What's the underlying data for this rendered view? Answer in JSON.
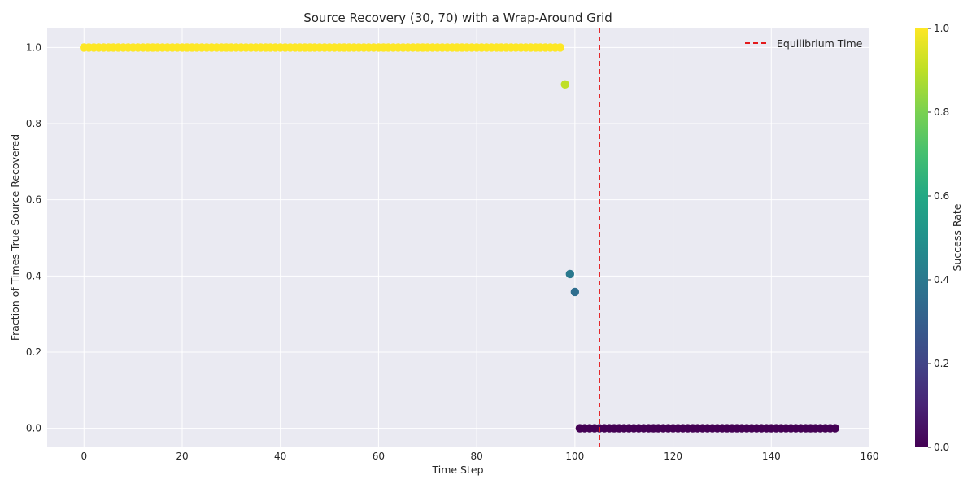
{
  "chart_data": {
    "type": "scatter",
    "title": "Source Recovery (30, 70) with a Wrap-Around Grid",
    "xlabel": "Time Step",
    "ylabel": "Fraction of Times True Source Recovered",
    "xlim": [
      -7.5,
      160
    ],
    "ylim": [
      -0.05,
      1.05
    ],
    "x_ticks": [
      0,
      20,
      40,
      60,
      80,
      100,
      120,
      140,
      160
    ],
    "y_ticks": [
      0.0,
      0.2,
      0.4,
      0.6,
      0.8,
      1.0
    ],
    "grid": true,
    "colormap": "viridis",
    "colorbar": {
      "label": "Success Rate",
      "range": [
        0.0,
        1.0
      ],
      "ticks": [
        0.0,
        0.2,
        0.4,
        0.6,
        0.8,
        1.0
      ]
    },
    "series": [
      {
        "points": [
          {
            "x": 0,
            "y": 1.0
          },
          {
            "x": 1,
            "y": 1.0
          },
          {
            "x": 2,
            "y": 1.0
          },
          {
            "x": 3,
            "y": 1.0
          },
          {
            "x": 4,
            "y": 1.0
          },
          {
            "x": 5,
            "y": 1.0
          },
          {
            "x": 6,
            "y": 1.0
          },
          {
            "x": 7,
            "y": 1.0
          },
          {
            "x": 8,
            "y": 1.0
          },
          {
            "x": 9,
            "y": 1.0
          },
          {
            "x": 10,
            "y": 1.0
          },
          {
            "x": 11,
            "y": 1.0
          },
          {
            "x": 12,
            "y": 1.0
          },
          {
            "x": 13,
            "y": 1.0
          },
          {
            "x": 14,
            "y": 1.0
          },
          {
            "x": 15,
            "y": 1.0
          },
          {
            "x": 16,
            "y": 1.0
          },
          {
            "x": 17,
            "y": 1.0
          },
          {
            "x": 18,
            "y": 1.0
          },
          {
            "x": 19,
            "y": 1.0
          },
          {
            "x": 20,
            "y": 1.0
          },
          {
            "x": 21,
            "y": 1.0
          },
          {
            "x": 22,
            "y": 1.0
          },
          {
            "x": 23,
            "y": 1.0
          },
          {
            "x": 24,
            "y": 1.0
          },
          {
            "x": 25,
            "y": 1.0
          },
          {
            "x": 26,
            "y": 1.0
          },
          {
            "x": 27,
            "y": 1.0
          },
          {
            "x": 28,
            "y": 1.0
          },
          {
            "x": 29,
            "y": 1.0
          },
          {
            "x": 30,
            "y": 1.0
          },
          {
            "x": 31,
            "y": 1.0
          },
          {
            "x": 32,
            "y": 1.0
          },
          {
            "x": 33,
            "y": 1.0
          },
          {
            "x": 34,
            "y": 1.0
          },
          {
            "x": 35,
            "y": 1.0
          },
          {
            "x": 36,
            "y": 1.0
          },
          {
            "x": 37,
            "y": 1.0
          },
          {
            "x": 38,
            "y": 1.0
          },
          {
            "x": 39,
            "y": 1.0
          },
          {
            "x": 40,
            "y": 1.0
          },
          {
            "x": 41,
            "y": 1.0
          },
          {
            "x": 42,
            "y": 1.0
          },
          {
            "x": 43,
            "y": 1.0
          },
          {
            "x": 44,
            "y": 1.0
          },
          {
            "x": 45,
            "y": 1.0
          },
          {
            "x": 46,
            "y": 1.0
          },
          {
            "x": 47,
            "y": 1.0
          },
          {
            "x": 48,
            "y": 1.0
          },
          {
            "x": 49,
            "y": 1.0
          },
          {
            "x": 50,
            "y": 1.0
          },
          {
            "x": 51,
            "y": 1.0
          },
          {
            "x": 52,
            "y": 1.0
          },
          {
            "x": 53,
            "y": 1.0
          },
          {
            "x": 54,
            "y": 1.0
          },
          {
            "x": 55,
            "y": 1.0
          },
          {
            "x": 56,
            "y": 1.0
          },
          {
            "x": 57,
            "y": 1.0
          },
          {
            "x": 58,
            "y": 1.0
          },
          {
            "x": 59,
            "y": 1.0
          },
          {
            "x": 60,
            "y": 1.0
          },
          {
            "x": 61,
            "y": 1.0
          },
          {
            "x": 62,
            "y": 1.0
          },
          {
            "x": 63,
            "y": 1.0
          },
          {
            "x": 64,
            "y": 1.0
          },
          {
            "x": 65,
            "y": 1.0
          },
          {
            "x": 66,
            "y": 1.0
          },
          {
            "x": 67,
            "y": 1.0
          },
          {
            "x": 68,
            "y": 1.0
          },
          {
            "x": 69,
            "y": 1.0
          },
          {
            "x": 70,
            "y": 1.0
          },
          {
            "x": 71,
            "y": 1.0
          },
          {
            "x": 72,
            "y": 1.0
          },
          {
            "x": 73,
            "y": 1.0
          },
          {
            "x": 74,
            "y": 1.0
          },
          {
            "x": 75,
            "y": 1.0
          },
          {
            "x": 76,
            "y": 1.0
          },
          {
            "x": 77,
            "y": 1.0
          },
          {
            "x": 78,
            "y": 1.0
          },
          {
            "x": 79,
            "y": 1.0
          },
          {
            "x": 80,
            "y": 1.0
          },
          {
            "x": 81,
            "y": 1.0
          },
          {
            "x": 82,
            "y": 1.0
          },
          {
            "x": 83,
            "y": 1.0
          },
          {
            "x": 84,
            "y": 1.0
          },
          {
            "x": 85,
            "y": 1.0
          },
          {
            "x": 86,
            "y": 1.0
          },
          {
            "x": 87,
            "y": 1.0
          },
          {
            "x": 88,
            "y": 1.0
          },
          {
            "x": 89,
            "y": 1.0
          },
          {
            "x": 90,
            "y": 1.0
          },
          {
            "x": 91,
            "y": 1.0
          },
          {
            "x": 92,
            "y": 1.0
          },
          {
            "x": 93,
            "y": 1.0
          },
          {
            "x": 94,
            "y": 1.0
          },
          {
            "x": 95,
            "y": 1.0
          },
          {
            "x": 96,
            "y": 1.0
          },
          {
            "x": 97,
            "y": 1.0
          },
          {
            "x": 98,
            "y": 0.903
          },
          {
            "x": 99,
            "y": 0.405
          },
          {
            "x": 100,
            "y": 0.358
          },
          {
            "x": 101,
            "y": 0.0
          },
          {
            "x": 102,
            "y": 0.0
          },
          {
            "x": 103,
            "y": 0.0
          },
          {
            "x": 104,
            "y": 0.0
          },
          {
            "x": 105,
            "y": 0.0
          },
          {
            "x": 106,
            "y": 0.0
          },
          {
            "x": 107,
            "y": 0.0
          },
          {
            "x": 108,
            "y": 0.0
          },
          {
            "x": 109,
            "y": 0.0
          },
          {
            "x": 110,
            "y": 0.0
          },
          {
            "x": 111,
            "y": 0.0
          },
          {
            "x": 112,
            "y": 0.0
          },
          {
            "x": 113,
            "y": 0.0
          },
          {
            "x": 114,
            "y": 0.0
          },
          {
            "x": 115,
            "y": 0.0
          },
          {
            "x": 116,
            "y": 0.0
          },
          {
            "x": 117,
            "y": 0.0
          },
          {
            "x": 118,
            "y": 0.0
          },
          {
            "x": 119,
            "y": 0.0
          },
          {
            "x": 120,
            "y": 0.0
          },
          {
            "x": 121,
            "y": 0.0
          },
          {
            "x": 122,
            "y": 0.0
          },
          {
            "x": 123,
            "y": 0.0
          },
          {
            "x": 124,
            "y": 0.0
          },
          {
            "x": 125,
            "y": 0.0
          },
          {
            "x": 126,
            "y": 0.0
          },
          {
            "x": 127,
            "y": 0.0
          },
          {
            "x": 128,
            "y": 0.0
          },
          {
            "x": 129,
            "y": 0.0
          },
          {
            "x": 130,
            "y": 0.0
          },
          {
            "x": 131,
            "y": 0.0
          },
          {
            "x": 132,
            "y": 0.0
          },
          {
            "x": 133,
            "y": 0.0
          },
          {
            "x": 134,
            "y": 0.0
          },
          {
            "x": 135,
            "y": 0.0
          },
          {
            "x": 136,
            "y": 0.0
          },
          {
            "x": 137,
            "y": 0.0
          },
          {
            "x": 138,
            "y": 0.0
          },
          {
            "x": 139,
            "y": 0.0
          },
          {
            "x": 140,
            "y": 0.0
          },
          {
            "x": 141,
            "y": 0.0
          },
          {
            "x": 142,
            "y": 0.0
          },
          {
            "x": 143,
            "y": 0.0
          },
          {
            "x": 144,
            "y": 0.0
          },
          {
            "x": 145,
            "y": 0.0
          },
          {
            "x": 146,
            "y": 0.0
          },
          {
            "x": 147,
            "y": 0.0
          },
          {
            "x": 148,
            "y": 0.0
          },
          {
            "x": 149,
            "y": 0.0
          },
          {
            "x": 150,
            "y": 0.0
          },
          {
            "x": 151,
            "y": 0.0
          },
          {
            "x": 152,
            "y": 0.0
          },
          {
            "x": 153,
            "y": 0.0
          }
        ]
      }
    ],
    "vline": {
      "x": 105,
      "label": "Equilibrium Time",
      "color": "#e31a1c",
      "style": "dashed"
    },
    "legend": {
      "position": "top-right",
      "entries": [
        "Equilibrium Time"
      ]
    },
    "colors": {
      "plot_background": "#eaeaf2",
      "grid": "#ffffff",
      "vline": "#e31a1c"
    }
  }
}
